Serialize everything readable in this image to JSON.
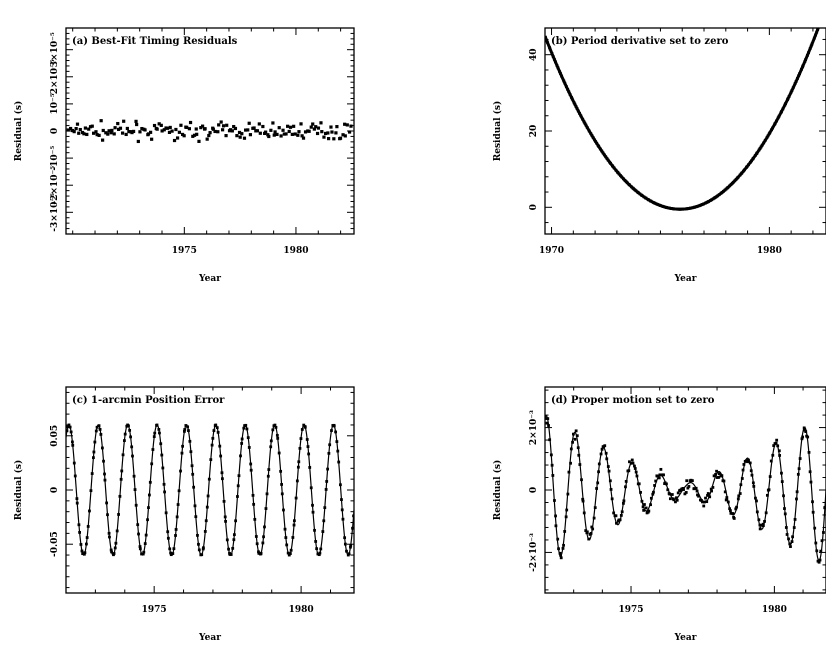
{
  "chart_data": [
    {
      "type": "scatter",
      "title": "(a) Best-Fit Timing Residuals",
      "xlabel": "Year",
      "ylabel": "Residual (s)",
      "xlim": [
        1969.7,
        1982.6
      ],
      "ylim": [
        -3.8e-05,
        3.8e-05
      ],
      "xticks": [
        1975,
        1980
      ],
      "xtick_labels": [
        "1975",
        "1980"
      ],
      "yticks": [
        -3e-05,
        -2e-05,
        -1e-05,
        0,
        1e-05,
        2e-05,
        3e-05
      ],
      "ytick_labels": [
        "-3×10⁻⁵",
        "-2×10⁻⁵",
        "-10⁻⁵",
        "0",
        "10⁻⁵",
        "2×10⁻⁵",
        "3×10⁻⁵"
      ],
      "series": [
        {
          "pattern": "noise",
          "amplitude": 2.8e-06,
          "x_range": [
            1969.8,
            1982.5
          ],
          "n_points": 170
        }
      ],
      "grid": false
    },
    {
      "type": "line",
      "title": "(b) Period derivative set to zero",
      "xlabel": "Year",
      "ylabel": "Residual (s)",
      "xlim": [
        1969.7,
        1982.6
      ],
      "ylim": [
        -7,
        47
      ],
      "xticks": [
        1970,
        1980
      ],
      "xtick_labels": [
        "1970",
        "1980"
      ],
      "yticks": [
        0,
        20,
        40
      ],
      "ytick_labels": [
        "0",
        "20",
        "40"
      ],
      "series": [
        {
          "pattern": "parabola",
          "vertex_x": 1975.9,
          "vertex_y": -0.5,
          "curvature": 1.18,
          "x_range": [
            1969.7,
            1982.6
          ]
        }
      ],
      "grid": false
    },
    {
      "type": "line",
      "title": "(c) 1-arcmin Position Error",
      "xlabel": "Year",
      "ylabel": "Residual (s)",
      "xlim": [
        1972.0,
        1981.8
      ],
      "ylim": [
        -0.095,
        0.095
      ],
      "xticks": [
        1975,
        1980
      ],
      "xtick_labels": [
        "1975",
        "1980"
      ],
      "yticks": [
        -0.05,
        0,
        0.05
      ],
      "ytick_labels": [
        "-0.05",
        "0",
        "0.05"
      ],
      "series": [
        {
          "pattern": "sine",
          "amplitude": 0.06,
          "period_years": 1.0,
          "phase_year": 1972.85,
          "x_range": [
            1972.0,
            1981.8
          ]
        }
      ],
      "grid": false
    },
    {
      "type": "line",
      "title": "(d) Proper motion set to zero",
      "xlabel": "Year",
      "ylabel": "Residual (s)",
      "xlim": [
        1972.0,
        1981.8
      ],
      "ylim": [
        -0.0033,
        0.0033
      ],
      "xticks": [
        1975,
        1980
      ],
      "xtick_labels": [
        "1975",
        "1980"
      ],
      "yticks": [
        -0.002,
        0,
        0.002
      ],
      "ytick_labels": [
        "-2×10⁻³",
        "0",
        "2×10⁻³"
      ],
      "series": [
        {
          "pattern": "modulated-sine",
          "amplitude_start": 0.0024,
          "amplitude_min": 0.0002,
          "min_year": 1976.9,
          "amplitude_end": 0.0024,
          "period_years": 1.0,
          "phase_year": 1972.8,
          "x_range": [
            1972.0,
            1981.8
          ]
        }
      ],
      "grid": false
    }
  ]
}
